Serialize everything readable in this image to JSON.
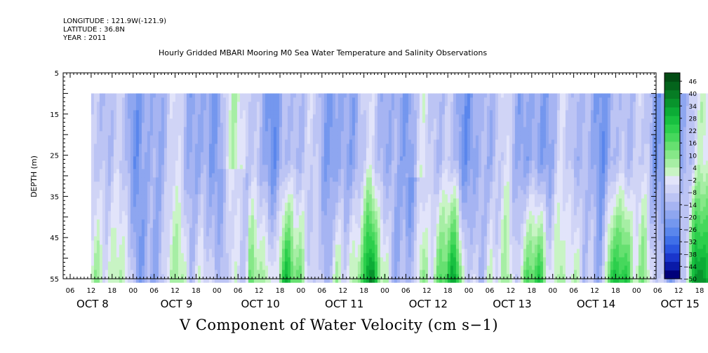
{
  "meta": {
    "longitude": "LONGITUDE : 121.9W(-121.9)",
    "latitude": "LATITUDE : 36.8N",
    "year": "YEAR : 2011"
  },
  "chart_data": {
    "type": "heatmap",
    "title": "Hourly Gridded MBARI Mooring M0 Sea Water Temperature and Salinity Observations",
    "xlabel": "V Component of Water Velocity (cm s−1)",
    "ylabel": "DEPTH (m)",
    "ylim": [
      55,
      5
    ],
    "y_ticks": [
      5,
      15,
      25,
      35,
      45,
      55
    ],
    "x_hour_ticks": [
      "06",
      "12",
      "18",
      "00",
      "06",
      "12",
      "18",
      "00",
      "06",
      "12",
      "18",
      "00",
      "06",
      "12",
      "18",
      "00",
      "06",
      "12",
      "18",
      "00",
      "06",
      "12",
      "18",
      "00",
      "06",
      "12",
      "18",
      "00",
      "06",
      "12",
      "18",
      "00"
    ],
    "x_day_labels": [
      "OCT  8",
      "OCT  9",
      "OCT 10",
      "OCT 11",
      "OCT 12",
      "OCT 13",
      "OCT 14",
      "OCT 15"
    ],
    "data_depth_range": [
      10,
      55
    ],
    "data_time_range": [
      "OCT 8 12:00",
      "OCT 15 05:00"
    ],
    "colorbar_levels": [
      "46",
      "40",
      "34",
      "28",
      "22",
      "16",
      "10",
      "4",
      "−2",
      "−8",
      "−14",
      "−20",
      "−26",
      "−32",
      "−38",
      "−44",
      "−50"
    ],
    "colorbar_min": -50,
    "colorbar_max": 50,
    "colorbar_colors": [
      "#00007a",
      "#0a1aa8",
      "#1a36cc",
      "#2a55e0",
      "#3f6fe8",
      "#5a86ec",
      "#7497ee",
      "#8ea6f0",
      "#a6b4f2",
      "#bcc4f4",
      "#d0d4f6",
      "#e2e4fa",
      "#c8f4c4",
      "#a6eea4",
      "#86e888",
      "#66e070",
      "#46d85c",
      "#2ccf4c",
      "#18c040",
      "#0cac36",
      "#08942c",
      "#067c24",
      "#04641c",
      "#034c14"
    ],
    "description_values": {
      "surface_trend": "mostly negative (-10 to -25) upper column",
      "deep_trend": "positive bursts (+5 to +20) near 40-55 m after OCT 10"
    }
  }
}
